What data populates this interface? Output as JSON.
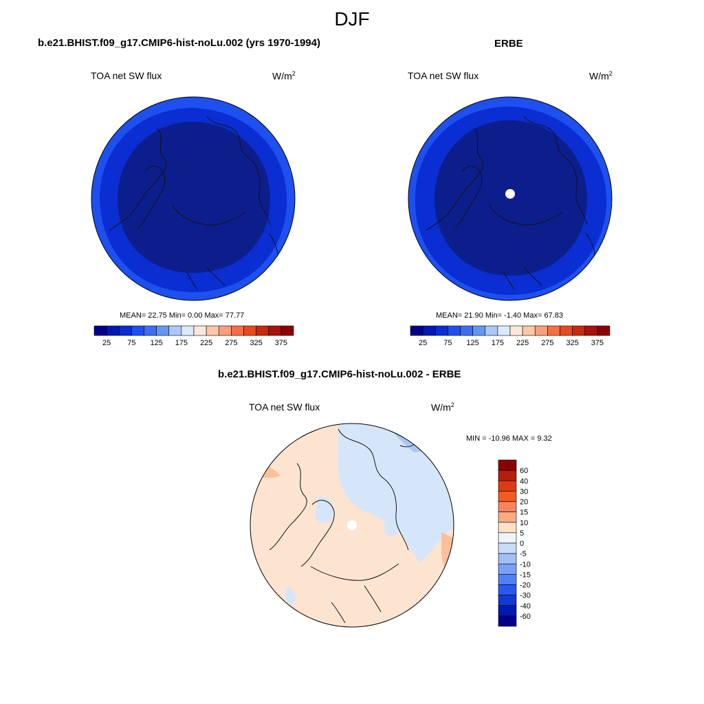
{
  "season": "DJF",
  "panels": {
    "model": {
      "case_title": "b.e21.BHIST.f09_g17.CMIP6-hist-noLu.002 (yrs 1970-1994)",
      "variable": "TOA net SW flux",
      "units": "W/m",
      "units_sup": "2",
      "stats": "MEAN=  22.75  Min=   0.00  Max=  77.77"
    },
    "obs": {
      "case_title": "ERBE",
      "variable": "TOA net SW flux",
      "units": "W/m",
      "units_sup": "2",
      "stats": "MEAN=  21.90  Min=  -1.40  Max=  67.83"
    },
    "diff": {
      "case_title": "b.e21.BHIST.f09_g17.CMIP6-hist-noLu.002 - ERBE",
      "variable": "TOA net SW flux",
      "units": "W/m",
      "units_sup": "2",
      "stats": "MIN = -10.96 MAX =   9.32"
    }
  },
  "colorbars": {
    "abs": {
      "colors": [
        "#00008b",
        "#0019b4",
        "#0a2ed2",
        "#1e50f0",
        "#3c6ef5",
        "#6496f5",
        "#aac8fa",
        "#dceaff",
        "#fde8d8",
        "#fcc6a8",
        "#fa9f7a",
        "#f56e46",
        "#e64a1e",
        "#c82a0a",
        "#a8140a",
        "#8b0000"
      ],
      "tick_labels": [
        "25",
        "75",
        "125",
        "175",
        "225",
        "275",
        "325",
        "375"
      ]
    },
    "diff": {
      "colors": [
        "#8b0000",
        "#b41e0a",
        "#dc3c14",
        "#f55a1e",
        "#fa825a",
        "#fcaa82",
        "#fde0c8",
        "#f0f4fa",
        "#c8dcfa",
        "#a0c0f5",
        "#7aa0f5",
        "#5080f5",
        "#2858f0",
        "#1438d2",
        "#0019b4",
        "#00008b"
      ],
      "tick_labels": [
        "60",
        "40",
        "30",
        "20",
        "15",
        "10",
        "5",
        "0",
        "-5",
        "-10",
        "-15",
        "-20",
        "-30",
        "-40",
        "-60"
      ]
    }
  },
  "map_colors": {
    "deep_blue": "#0c1e8c",
    "mid_blue": "#0a2ed2",
    "rim_blue": "#1e50f0",
    "pos_diff": "#fde4d0",
    "neg_diff": "#d6e6fa",
    "strong_pos": "#fbc09a",
    "strong_neg": "#aac6f5",
    "missing": "#ffffff",
    "coast": "#111111"
  },
  "icons": {
    "pole_missing": "pole-missing-marker"
  }
}
